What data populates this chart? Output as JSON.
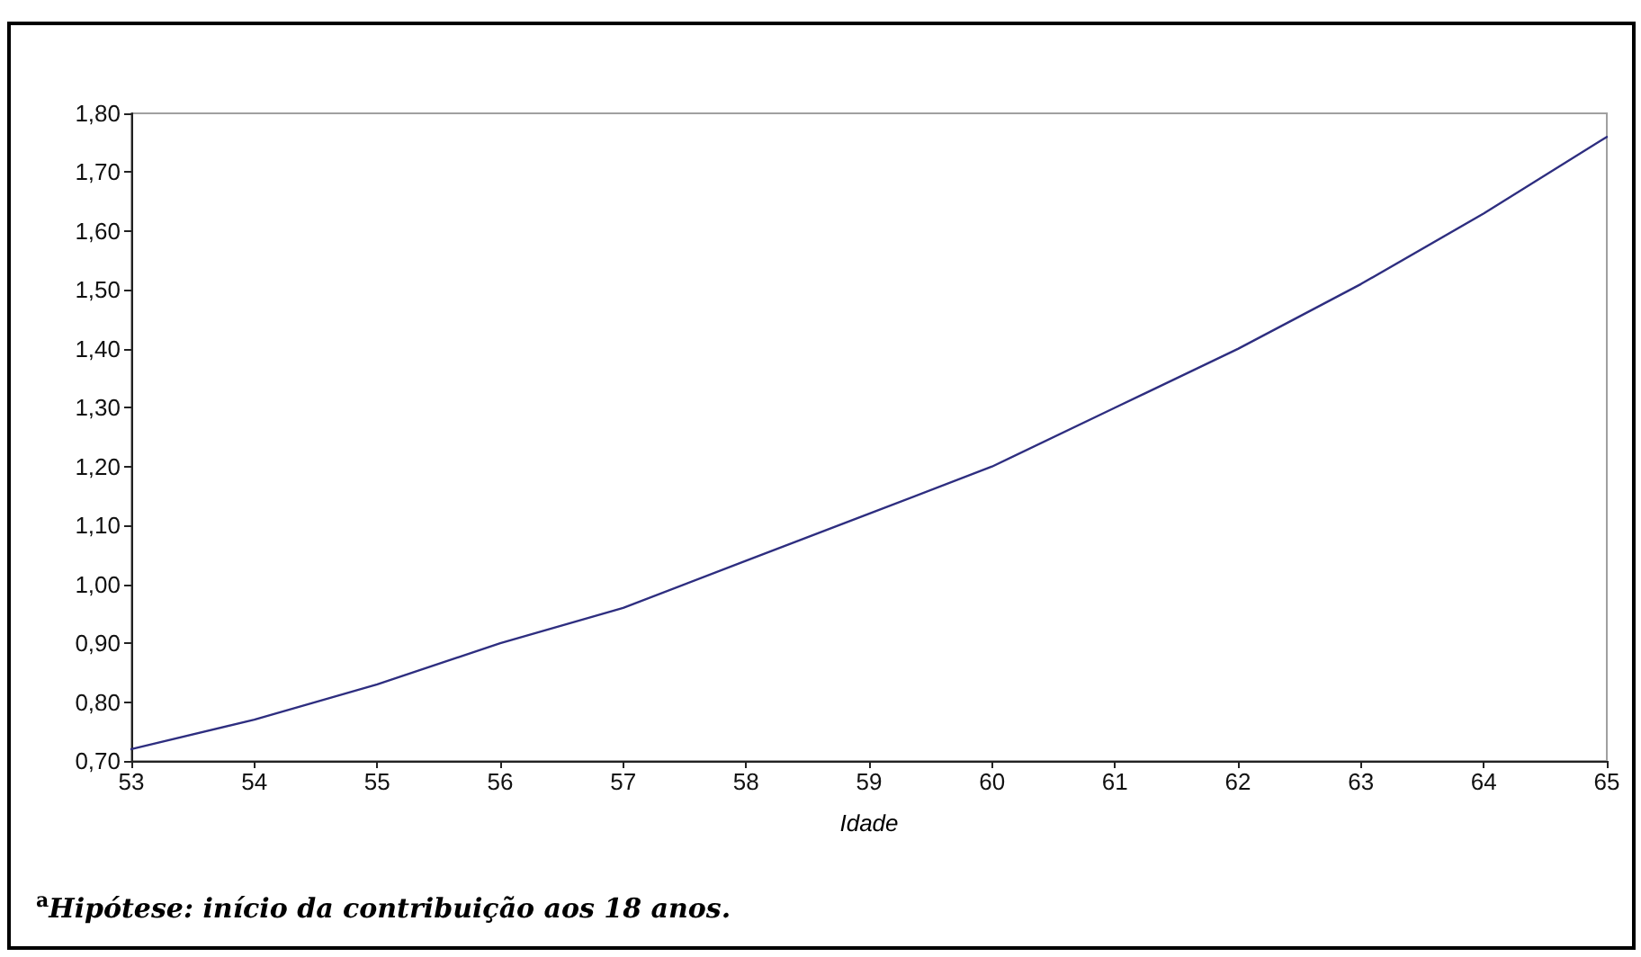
{
  "chart_data": {
    "type": "line",
    "xlabel": "Idade",
    "annotations": [
      "$^{a}$Hipótese: início da contribuição aos 18 anos."
    ],
    "x": [
      53,
      54,
      55,
      56,
      57,
      58,
      59,
      60,
      61,
      62,
      63,
      64,
      65
    ],
    "series": [
      {
        "color": "#2e2e80",
        "values": [
          0.72,
          0.77,
          0.83,
          0.9,
          0.96,
          1.04,
          1.12,
          1.2,
          1.3,
          1.4,
          1.51,
          1.63,
          1.76
        ]
      }
    ],
    "xlim": [
      53,
      65
    ],
    "xticks": [
      53,
      54,
      55,
      56,
      57,
      58,
      59,
      60,
      61,
      62,
      63,
      64,
      65
    ],
    "ylim": [
      0.7,
      1.8
    ],
    "yticks": [
      {
        "value": 0.7,
        "label": "0,70"
      },
      {
        "value": 0.8,
        "label": "0,80"
      },
      {
        "value": 0.9,
        "label": "0,90"
      },
      {
        "value": 1.0,
        "label": "1,00"
      },
      {
        "value": 1.1,
        "label": "1,10"
      },
      {
        "value": 1.2,
        "label": "1,20"
      },
      {
        "value": 1.3,
        "label": "1,30"
      },
      {
        "value": 1.4,
        "label": "1,40"
      },
      {
        "value": 1.5,
        "label": "1,50"
      },
      {
        "value": 1.6,
        "label": "1,60"
      },
      {
        "value": 1.7,
        "label": "1,70"
      },
      {
        "value": 1.8,
        "label": "1,80"
      }
    ],
    "marker": "none",
    "line_style": "solid"
  }
}
